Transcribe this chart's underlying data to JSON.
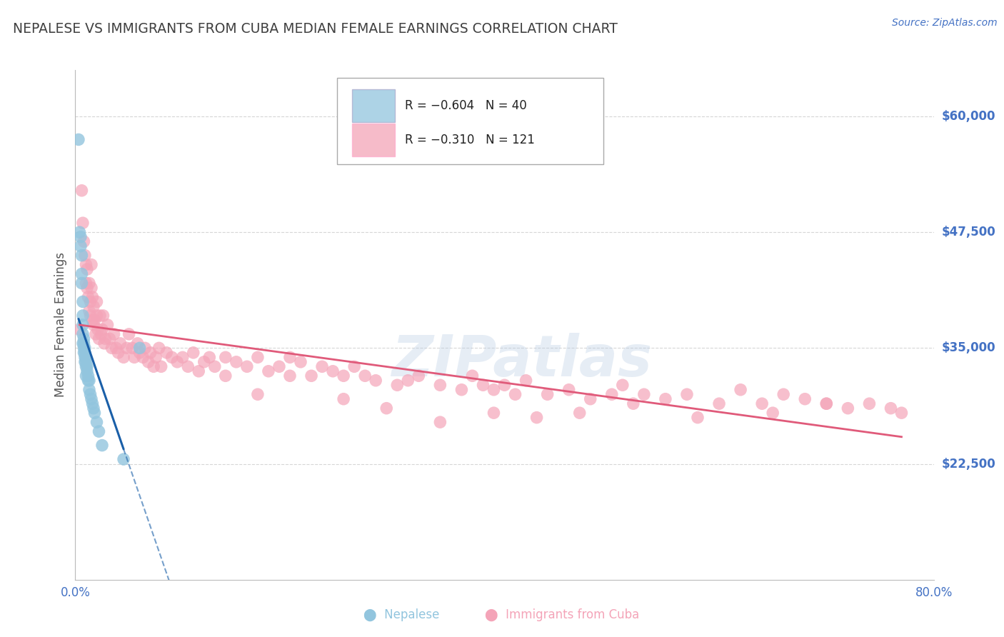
{
  "title": "NEPALESE VS IMMIGRANTS FROM CUBA MEDIAN FEMALE EARNINGS CORRELATION CHART",
  "source": "Source: ZipAtlas.com",
  "ylabel": "Median Female Earnings",
  "xlim": [
    0.0,
    0.8
  ],
  "ylim": [
    10000,
    65000
  ],
  "ytick_labels": [
    "$60,000",
    "$47,500",
    "$35,000",
    "$22,500"
  ],
  "ytick_values": [
    60000,
    47500,
    35000,
    22500
  ],
  "xtick_labels": [
    "0.0%",
    "",
    "",
    "",
    "",
    "",
    "",
    "",
    "80.0%"
  ],
  "xtick_values": [
    0.0,
    0.1,
    0.2,
    0.3,
    0.4,
    0.5,
    0.6,
    0.7,
    0.8
  ],
  "blue_color": "#92c5de",
  "pink_color": "#f4a4b8",
  "blue_line_color": "#1a5fa8",
  "pink_line_color": "#e05a7a",
  "legend_R_blue": "R = −0.604",
  "legend_N_blue": "N = 40",
  "legend_R_pink": "R = −0.310",
  "legend_N_pink": "N = 121",
  "nepalese_x": [
    0.003,
    0.004,
    0.005,
    0.005,
    0.006,
    0.006,
    0.006,
    0.007,
    0.007,
    0.007,
    0.007,
    0.007,
    0.008,
    0.008,
    0.008,
    0.008,
    0.009,
    0.009,
    0.009,
    0.009,
    0.01,
    0.01,
    0.01,
    0.01,
    0.011,
    0.011,
    0.012,
    0.012,
    0.013,
    0.013,
    0.014,
    0.015,
    0.016,
    0.017,
    0.018,
    0.02,
    0.022,
    0.025,
    0.045,
    0.06
  ],
  "nepalese_y": [
    57500,
    47500,
    47000,
    46000,
    45000,
    43000,
    42000,
    40000,
    38500,
    37500,
    36500,
    35500,
    35500,
    36000,
    35000,
    34500,
    34500,
    33500,
    35000,
    34000,
    33500,
    34000,
    33000,
    32000,
    33000,
    32500,
    31500,
    32000,
    31500,
    30500,
    30000,
    29500,
    29000,
    28500,
    28000,
    27000,
    26000,
    24500,
    23000,
    35000
  ],
  "cuba_x": [
    0.004,
    0.006,
    0.007,
    0.008,
    0.009,
    0.01,
    0.01,
    0.011,
    0.011,
    0.012,
    0.013,
    0.013,
    0.014,
    0.014,
    0.015,
    0.015,
    0.016,
    0.016,
    0.017,
    0.017,
    0.018,
    0.019,
    0.02,
    0.02,
    0.021,
    0.022,
    0.023,
    0.024,
    0.025,
    0.026,
    0.027,
    0.028,
    0.03,
    0.032,
    0.034,
    0.036,
    0.038,
    0.04,
    0.042,
    0.045,
    0.048,
    0.05,
    0.053,
    0.055,
    0.058,
    0.06,
    0.063,
    0.065,
    0.068,
    0.07,
    0.073,
    0.075,
    0.078,
    0.08,
    0.085,
    0.09,
    0.095,
    0.1,
    0.105,
    0.11,
    0.115,
    0.12,
    0.125,
    0.13,
    0.14,
    0.15,
    0.16,
    0.17,
    0.18,
    0.19,
    0.2,
    0.21,
    0.22,
    0.23,
    0.24,
    0.25,
    0.26,
    0.27,
    0.28,
    0.3,
    0.31,
    0.32,
    0.34,
    0.36,
    0.37,
    0.38,
    0.39,
    0.4,
    0.41,
    0.42,
    0.44,
    0.46,
    0.48,
    0.5,
    0.51,
    0.53,
    0.55,
    0.57,
    0.6,
    0.62,
    0.64,
    0.66,
    0.68,
    0.7,
    0.72,
    0.74,
    0.76,
    0.77,
    0.7,
    0.65,
    0.58,
    0.52,
    0.47,
    0.43,
    0.39,
    0.34,
    0.29,
    0.25,
    0.2,
    0.17,
    0.14
  ],
  "cuba_y": [
    37000,
    52000,
    48500,
    46500,
    45000,
    44000,
    42000,
    43500,
    41500,
    40500,
    39000,
    42000,
    40000,
    38500,
    44000,
    41500,
    38000,
    40500,
    37500,
    39500,
    38000,
    36500,
    40000,
    38500,
    37000,
    36000,
    38500,
    36500,
    37000,
    38500,
    35500,
    36000,
    37500,
    36000,
    35000,
    36500,
    35000,
    34500,
    35500,
    34000,
    35000,
    36500,
    35000,
    34000,
    35500,
    34500,
    34000,
    35000,
    33500,
    34500,
    33000,
    34000,
    35000,
    33000,
    34500,
    34000,
    33500,
    34000,
    33000,
    34500,
    32500,
    33500,
    34000,
    33000,
    34000,
    33500,
    33000,
    34000,
    32500,
    33000,
    32000,
    33500,
    32000,
    33000,
    32500,
    32000,
    33000,
    32000,
    31500,
    31000,
    31500,
    32000,
    31000,
    30500,
    32000,
    31000,
    30500,
    31000,
    30000,
    31500,
    30000,
    30500,
    29500,
    30000,
    31000,
    30000,
    29500,
    30000,
    29000,
    30500,
    29000,
    30000,
    29500,
    29000,
    28500,
    29000,
    28500,
    28000,
    29000,
    28000,
    27500,
    29000,
    28000,
    27500,
    28000,
    27000,
    28500,
    29500,
    34000,
    30000,
    32000
  ],
  "watermark_text": "ZIPatlas",
  "background_color": "#ffffff",
  "grid_color": "#cccccc",
  "axis_color": "#4472c4",
  "title_color": "#404040",
  "ylabel_color": "#555555"
}
